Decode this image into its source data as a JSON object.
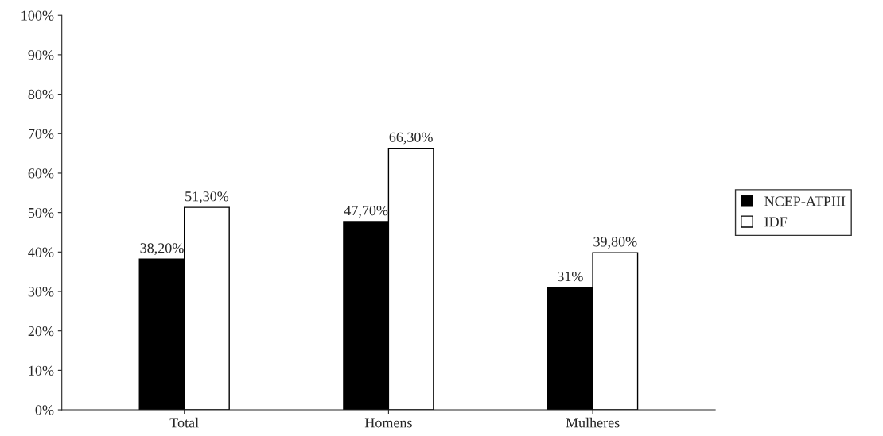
{
  "chart_data": {
    "type": "bar",
    "categories": [
      "Total",
      "Homens",
      "Mulheres"
    ],
    "series": [
      {
        "name": "NCEP-ATPIII",
        "color": "#000000",
        "values": [
          38.2,
          47.7,
          31
        ],
        "value_labels": [
          "38,20%",
          "47,70%",
          "31%"
        ]
      },
      {
        "name": "IDF",
        "color": "#ffffff",
        "values": [
          51.3,
          66.3,
          39.8
        ],
        "value_labels": [
          "51,30%",
          "66,30%",
          "39,80%"
        ]
      }
    ],
    "ylim": [
      0,
      100
    ],
    "yticks": [
      {
        "value": 0,
        "label": "0%"
      },
      {
        "value": 10,
        "label": "10%"
      },
      {
        "value": 20,
        "label": "20%"
      },
      {
        "value": 30,
        "label": "30%"
      },
      {
        "value": 40,
        "label": "40%"
      },
      {
        "value": 50,
        "label": "50%"
      },
      {
        "value": 60,
        "label": "60%"
      },
      {
        "value": 70,
        "label": "70%"
      },
      {
        "value": 80,
        "label": "80%"
      },
      {
        "value": 90,
        "label": "90%"
      },
      {
        "value": 100,
        "label": "100%"
      }
    ],
    "grid": false,
    "legend": "right"
  }
}
